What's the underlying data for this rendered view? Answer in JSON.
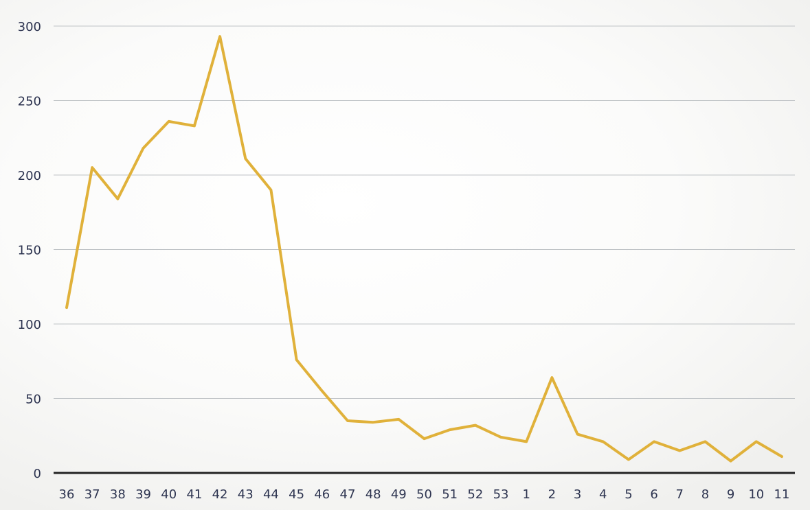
{
  "chart_data": {
    "type": "line",
    "title": "",
    "xlabel": "",
    "ylabel": "",
    "ylim": [
      0,
      300
    ],
    "yticks": [
      "0",
      "50",
      "100",
      "150",
      "200",
      "250",
      "300"
    ],
    "grid": true,
    "legend": "none",
    "series_color": "#e0b13a",
    "categories": [
      "36",
      "37",
      "38",
      "39",
      "40",
      "41",
      "42",
      "43",
      "44",
      "45",
      "46",
      "47",
      "48",
      "49",
      "50",
      "51",
      "52",
      "53",
      "1",
      "2",
      "3",
      "4",
      "5",
      "6",
      "7",
      "8",
      "9",
      "10",
      "11"
    ],
    "series": [
      {
        "values": [
          111,
          205,
          184,
          218,
          236,
          233,
          293,
          211,
          190,
          76,
          55,
          35,
          34,
          36,
          23,
          29,
          32,
          24,
          21,
          64,
          26,
          21,
          9,
          21,
          15,
          21,
          8,
          21,
          11
        ]
      }
    ]
  }
}
